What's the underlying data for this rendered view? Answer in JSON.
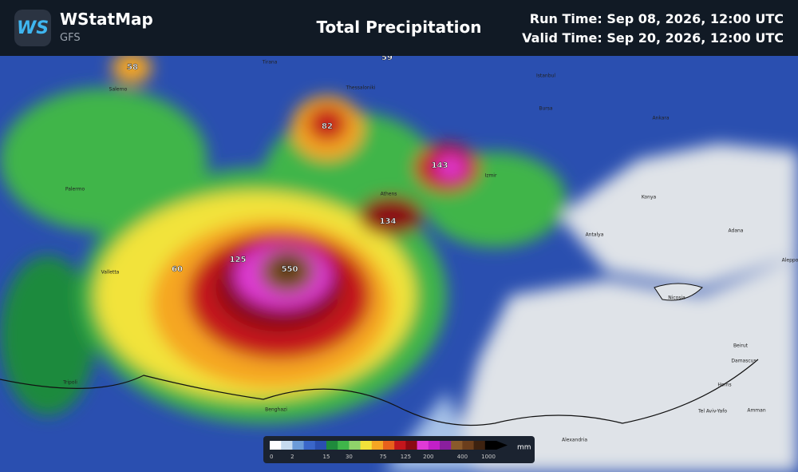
{
  "header": {
    "app_name": "WStatMap",
    "logo": "WS",
    "model": "GFS",
    "title": "Total Precipitation",
    "run_time": "Run Time: Sep 08, 2026, 12:00 UTC",
    "valid_time": "Valid Time: Sep 20, 2026, 12:00 UTC"
  },
  "map": {
    "value_labels": [
      58,
      59,
      82,
      143,
      134,
      125,
      550,
      60
    ],
    "cities": [
      "Salerno",
      "Tirana",
      "Thessaloniki",
      "Istanbul",
      "Bursa",
      "Ankara",
      "Izmir",
      "Athens",
      "Konya",
      "Antalya",
      "Adana",
      "Palermo",
      "Valletta",
      "Tripoli",
      "Benghazi",
      "Alexandria",
      "Nicosia",
      "Beirut",
      "Damascus",
      "Tel Aviv-Yafo",
      "Amman",
      "Homs",
      "Aleppo"
    ]
  },
  "legend": {
    "unit": "mm",
    "ticks": [
      0,
      2,
      15,
      30,
      75,
      125,
      200,
      400,
      1000
    ],
    "colors": [
      "#ffffff",
      "#c6dbef",
      "#6b9bd8",
      "#3a66c9",
      "#2a4fb0",
      "#1f8a3c",
      "#3fb54a",
      "#8fd36a",
      "#f2e33a",
      "#f5a623",
      "#e8601c",
      "#c4161c",
      "#8b0a12",
      "#e03ad6",
      "#c21fc8",
      "#8a1f9e",
      "#8a5a2b",
      "#6b3e1c",
      "#3d2210",
      "#000000"
    ]
  }
}
